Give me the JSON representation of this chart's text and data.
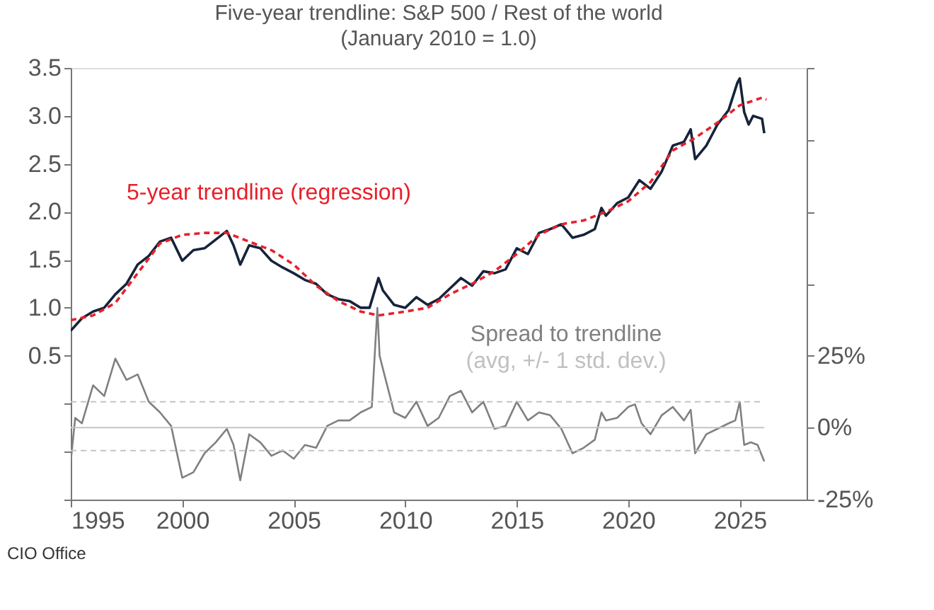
{
  "chart_data": {
    "type": "line",
    "title": "Five-year trendline: S&P 500 / Rest of the world",
    "subtitle": "(January 2010 = 1.0)",
    "xlim": [
      1995,
      2028
    ],
    "xticks": [
      1995,
      2000,
      2005,
      2010,
      2015,
      2020,
      2025
    ],
    "ylim": [
      -1.0,
      3.5
    ],
    "yticks": [
      {
        "value": -1.0,
        "label": null
      },
      {
        "value": -0.5,
        "label": null
      },
      {
        "value": 0,
        "label": null
      },
      {
        "value": 0.5,
        "label": "0.5"
      },
      {
        "value": 1.0,
        "label": "1.0"
      },
      {
        "value": 1.5,
        "label": "1.5"
      },
      {
        "value": 2.0,
        "label": "2.0"
      },
      {
        "value": 2.5,
        "label": "2.5"
      },
      {
        "value": 3.0,
        "label": "3.0"
      },
      {
        "value": 3.5,
        "label": "3.5"
      }
    ],
    "y2lim": [
      -25,
      125
    ],
    "y2ticks": [
      {
        "value": -25,
        "label": "-25%"
      },
      {
        "value": 0,
        "label": "0%"
      },
      {
        "value": 25,
        "label": "25%"
      },
      {
        "value": 50,
        "label": null
      },
      {
        "value": 75,
        "label": null
      },
      {
        "value": 100,
        "label": null
      },
      {
        "value": 125,
        "label": null
      }
    ],
    "grid": false,
    "marker": "none",
    "series": [
      {
        "color": "#16233a",
        "line_style": "solid",
        "x": [
          1995,
          1995.5,
          1996,
          1996.5,
          1997,
          1997.5,
          1998,
          1998.5,
          1999,
          1999.5,
          2000,
          2000.5,
          2001,
          2001.5,
          2002,
          2002.3,
          2002.6,
          2003,
          2003.5,
          2004,
          2004.5,
          2005,
          2005.5,
          2006,
          2006.5,
          2007,
          2007.5,
          2008,
          2008.4,
          2008.8,
          2009,
          2009.5,
          2010,
          2010.5,
          2011,
          2011.5,
          2012,
          2012.5,
          2013,
          2013.5,
          2014,
          2014.5,
          2015,
          2015.5,
          2016,
          2016.5,
          2017,
          2017.5,
          2018,
          2018.5,
          2018.8,
          2019,
          2019.5,
          2020,
          2020.5,
          2021,
          2021.5,
          2022,
          2022.5,
          2022.8,
          2023,
          2023.5,
          2024,
          2024.5,
          2024.9,
          2025,
          2025.2,
          2025.4,
          2025.6,
          2026,
          2026.1
        ],
        "values": [
          0.76,
          0.89,
          0.96,
          1.0,
          1.14,
          1.25,
          1.45,
          1.54,
          1.69,
          1.73,
          1.49,
          1.6,
          1.62,
          1.71,
          1.8,
          1.65,
          1.45,
          1.65,
          1.62,
          1.49,
          1.42,
          1.36,
          1.29,
          1.25,
          1.14,
          1.09,
          1.07,
          1.0,
          1.0,
          1.31,
          1.18,
          1.03,
          1.0,
          1.11,
          1.03,
          1.09,
          1.2,
          1.31,
          1.23,
          1.38,
          1.36,
          1.4,
          1.62,
          1.56,
          1.78,
          1.82,
          1.87,
          1.73,
          1.76,
          1.82,
          2.04,
          1.96,
          2.09,
          2.15,
          2.33,
          2.24,
          2.42,
          2.69,
          2.73,
          2.86,
          2.55,
          2.69,
          2.91,
          3.06,
          3.35,
          3.39,
          3.04,
          2.91,
          3.0,
          2.97,
          2.82
        ]
      },
      {
        "name": "5-year trendline (regression)",
        "color": "#e8202a",
        "line_style": "dashed",
        "x": [
          1995,
          1996,
          1997,
          1998,
          1999,
          2000,
          2001,
          2002,
          2003,
          2004,
          2005,
          2006,
          2007,
          2008,
          2008.8,
          2010,
          2011,
          2012,
          2013,
          2014,
          2015,
          2016,
          2017,
          2018,
          2019,
          2020,
          2021,
          2022,
          2023,
          2024,
          2025,
          2026,
          2026.2
        ],
        "values": [
          0.87,
          0.92,
          1.05,
          1.36,
          1.67,
          1.76,
          1.78,
          1.78,
          1.69,
          1.6,
          1.45,
          1.23,
          1.07,
          0.96,
          0.92,
          0.96,
          1.0,
          1.14,
          1.25,
          1.38,
          1.56,
          1.76,
          1.87,
          1.91,
          2.0,
          2.11,
          2.31,
          2.64,
          2.77,
          2.93,
          3.11,
          3.19,
          3.17
        ]
      },
      {
        "name": "Spread to trendline",
        "color": "#808080",
        "line_style": "solid",
        "axis": "y2",
        "x": [
          1995,
          1995.2,
          1995.5,
          1996,
          1996.5,
          1997,
          1997.5,
          1998,
          1998.5,
          1999,
          1999.5,
          2000,
          2000.5,
          2001,
          2001.5,
          2002,
          2002.3,
          2002.6,
          2003,
          2003.5,
          2004,
          2004.5,
          2005,
          2005.5,
          2006,
          2006.5,
          2007,
          2007.5,
          2008,
          2008.5,
          2008.75,
          2008.85,
          2009,
          2009.5,
          2010,
          2010.5,
          2011,
          2011.5,
          2012,
          2012.5,
          2013,
          2013.5,
          2014,
          2014.5,
          2015,
          2015.5,
          2016,
          2016.5,
          2017,
          2017.5,
          2018,
          2018.5,
          2018.8,
          2019,
          2019.5,
          2020,
          2020.3,
          2020.6,
          2021,
          2021.5,
          2022,
          2022.5,
          2022.8,
          2023,
          2023.5,
          2024,
          2024.5,
          2024.8,
          2025,
          2025.2,
          2025.5,
          2025.8,
          2026.1
        ],
        "values": [
          -11.7,
          3.4,
          1.5,
          14.7,
          11,
          24,
          16.6,
          18.5,
          9,
          5.3,
          0.6,
          -17.4,
          -15.5,
          -8.9,
          -5.1,
          -0.4,
          -6,
          -18.3,
          -2.3,
          -5.1,
          -9.8,
          -7.9,
          -10.8,
          -6,
          -7,
          0.6,
          2.5,
          2.5,
          5.3,
          7.2,
          41.6,
          25,
          20.4,
          5.3,
          3.4,
          9,
          0.6,
          3.4,
          11,
          12.8,
          5.3,
          9,
          -0.4,
          0.6,
          9,
          2.5,
          5.3,
          4.3,
          -0.4,
          -8.9,
          -7,
          -4.2,
          5.3,
          2.5,
          3.4,
          7.2,
          8.1,
          1.5,
          -2.3,
          4.3,
          7.2,
          2.5,
          6.2,
          -8.9,
          -2.3,
          -0.4,
          1.5,
          2.5,
          9,
          -6,
          -5.1,
          -6,
          -11.7
        ]
      }
    ],
    "ref_lines": [
      {
        "axis": "y2",
        "value": 0,
        "color": "#c4c4c4",
        "line_style": "solid"
      },
      {
        "axis": "y2",
        "value": 9,
        "color": "#c4c4c4",
        "line_style": "dashed"
      },
      {
        "axis": "y2",
        "value": -8,
        "color": "#c4c4c4",
        "line_style": "dashed"
      }
    ],
    "annotations": [
      "(avg, +/- 1 std. dev.)",
      "CIO Office"
    ]
  }
}
